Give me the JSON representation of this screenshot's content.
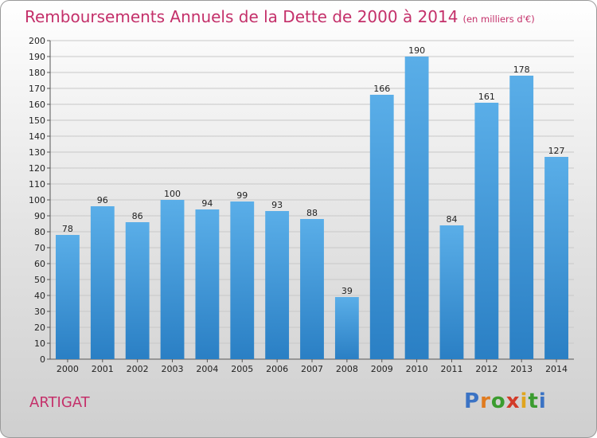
{
  "header": {
    "title": "Remboursements Annuels de la Dette de 2000 à 2014",
    "subtitle": "(en milliers d'€)"
  },
  "footer": {
    "commune": "ARTIGAT",
    "logo_letters": [
      "P",
      "r",
      "o",
      "x",
      "i",
      "t",
      "i"
    ],
    "logo_colors": [
      "#3b73c4",
      "#e07b1f",
      "#3b9c2f",
      "#d23c2a",
      "#e0a51f",
      "#3b9c2f",
      "#3b73c4"
    ]
  },
  "colors": {
    "title": "#c4306a",
    "bar_light": "#5aaee8",
    "bar_dark": "#2a7fc4"
  },
  "chart_data": {
    "type": "bar",
    "title": "Remboursements Annuels de la Dette de 2000 à 2014",
    "subtitle": "(en milliers d'€)",
    "categories": [
      "2000",
      "2001",
      "2002",
      "2003",
      "2004",
      "2005",
      "2006",
      "2007",
      "2008",
      "2009",
      "2010",
      "2011",
      "2012",
      "2013",
      "2014"
    ],
    "values": [
      78,
      96,
      86,
      100,
      94,
      99,
      93,
      88,
      39,
      166,
      190,
      84,
      161,
      178,
      127
    ],
    "ylim": [
      0,
      200
    ],
    "ytick_step": 10,
    "grid": true
  }
}
